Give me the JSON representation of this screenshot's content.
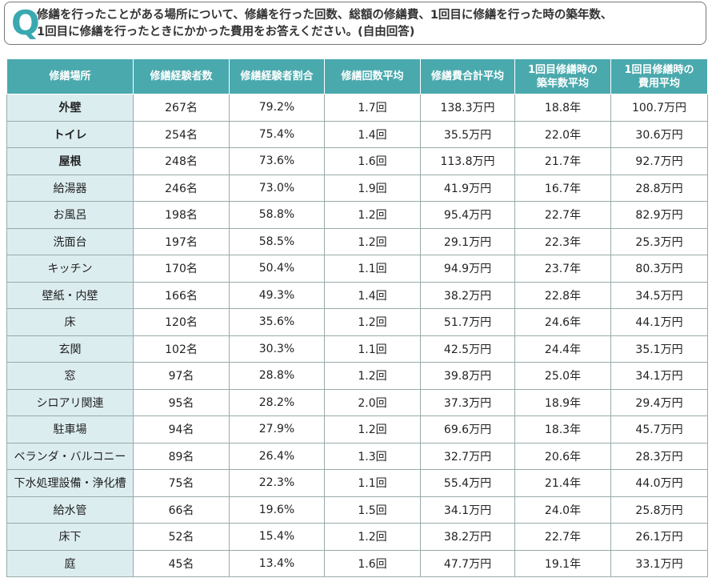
{
  "question": {
    "mark": "Q",
    "lines": [
      "修繕を行ったことがある場所について、修繕を行った回数、総額の修繕費、1回目に修繕を行った時の築年数、",
      "1回目に修繕を行ったときにかかった費用をお答えください。(自由回答)"
    ]
  },
  "table": {
    "header": [
      [
        "修繕場所"
      ],
      [
        "修繕経験者数"
      ],
      [
        "修繕経験者割合"
      ],
      [
        "修繕回数平均"
      ],
      [
        "修繕費合計平均"
      ],
      [
        "1回目修繕時の",
        "築年数平均"
      ],
      [
        "1回目修繕時の",
        "費用平均"
      ]
    ],
    "rows": [
      [
        "外壁",
        "267名",
        "79.2%",
        "1.7回",
        "138.3万円",
        "18.8年",
        "100.7万円"
      ],
      [
        "トイレ",
        "254名",
        "75.4%",
        "1.4回",
        "35.5万円",
        "22.0年",
        "30.6万円"
      ],
      [
        "屋根",
        "248名",
        "73.6%",
        "1.6回",
        "113.8万円",
        "21.7年",
        "92.7万円"
      ],
      [
        "給湯器",
        "246名",
        "73.0%",
        "1.9回",
        "41.9万円",
        "16.7年",
        "28.8万円"
      ],
      [
        "お風呂",
        "198名",
        "58.8%",
        "1.2回",
        "95.4万円",
        "22.7年",
        "82.9万円"
      ],
      [
        "洗面台",
        "197名",
        "58.5%",
        "1.2回",
        "29.1万円",
        "22.3年",
        "25.3万円"
      ],
      [
        "キッチン",
        "170名",
        "50.4%",
        "1.1回",
        "94.9万円",
        "23.7年",
        "80.3万円"
      ],
      [
        "壁紙・内壁",
        "166名",
        "49.3%",
        "1.4回",
        "38.2万円",
        "22.8年",
        "34.5万円"
      ],
      [
        "床",
        "120名",
        "35.6%",
        "1.2回",
        "51.7万円",
        "24.6年",
        "44.1万円"
      ],
      [
        "玄関",
        "102名",
        "30.3%",
        "1.1回",
        "42.5万円",
        "24.4年",
        "35.1万円"
      ],
      [
        "窓",
        "97名",
        "28.8%",
        "1.2回",
        "39.8万円",
        "25.0年",
        "34.1万円"
      ],
      [
        "シロアリ関連",
        "95名",
        "28.2%",
        "2.0回",
        "37.3万円",
        "18.9年",
        "29.4万円"
      ],
      [
        "駐車場",
        "94名",
        "27.9%",
        "1.2回",
        "69.6万円",
        "18.3年",
        "45.7万円"
      ],
      [
        "ベランダ・バルコニー",
        "89名",
        "26.4%",
        "1.3回",
        "32.7万円",
        "20.6年",
        "28.3万円"
      ],
      [
        "下水処理設備・浄化槽",
        "75名",
        "22.3%",
        "1.1回",
        "55.4万円",
        "21.4年",
        "44.0万円"
      ],
      [
        "給水管",
        "66名",
        "19.6%",
        "1.5回",
        "34.1万円",
        "24.0年",
        "25.8万円"
      ],
      [
        "床下",
        "52名",
        "15.4%",
        "1.2回",
        "38.2万円",
        "22.7年",
        "26.1万円"
      ],
      [
        "庭",
        "45名",
        "13.4%",
        "1.6回",
        "47.7万円",
        "19.1年",
        "33.1万円"
      ]
    ]
  }
}
